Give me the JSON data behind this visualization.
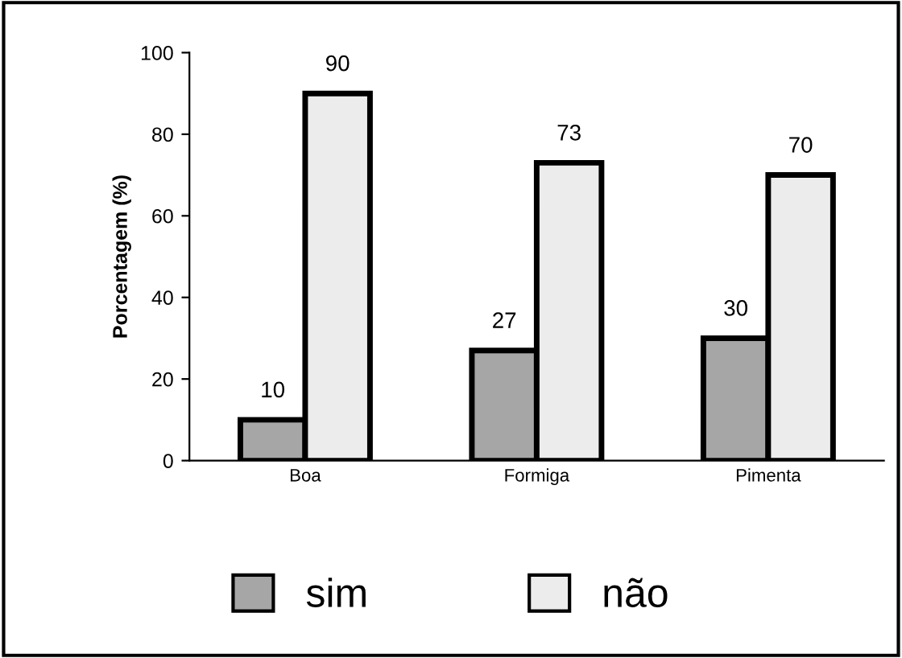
{
  "chart_data": {
    "type": "bar",
    "ylabel": "Porcentagem (%)",
    "categories": [
      "Boa",
      "Formiga",
      "Pimenta"
    ],
    "series": [
      {
        "name": "sim",
        "color": "#a6a6a6",
        "values": [
          10,
          27,
          30
        ]
      },
      {
        "name": "não",
        "color": "#ececec",
        "values": [
          90,
          73,
          70
        ]
      }
    ],
    "ylim": [
      0,
      100
    ],
    "yticks": [
      0,
      20,
      40,
      60,
      80,
      100
    ],
    "data_labels": true,
    "legend": "bottom",
    "grid": false
  }
}
